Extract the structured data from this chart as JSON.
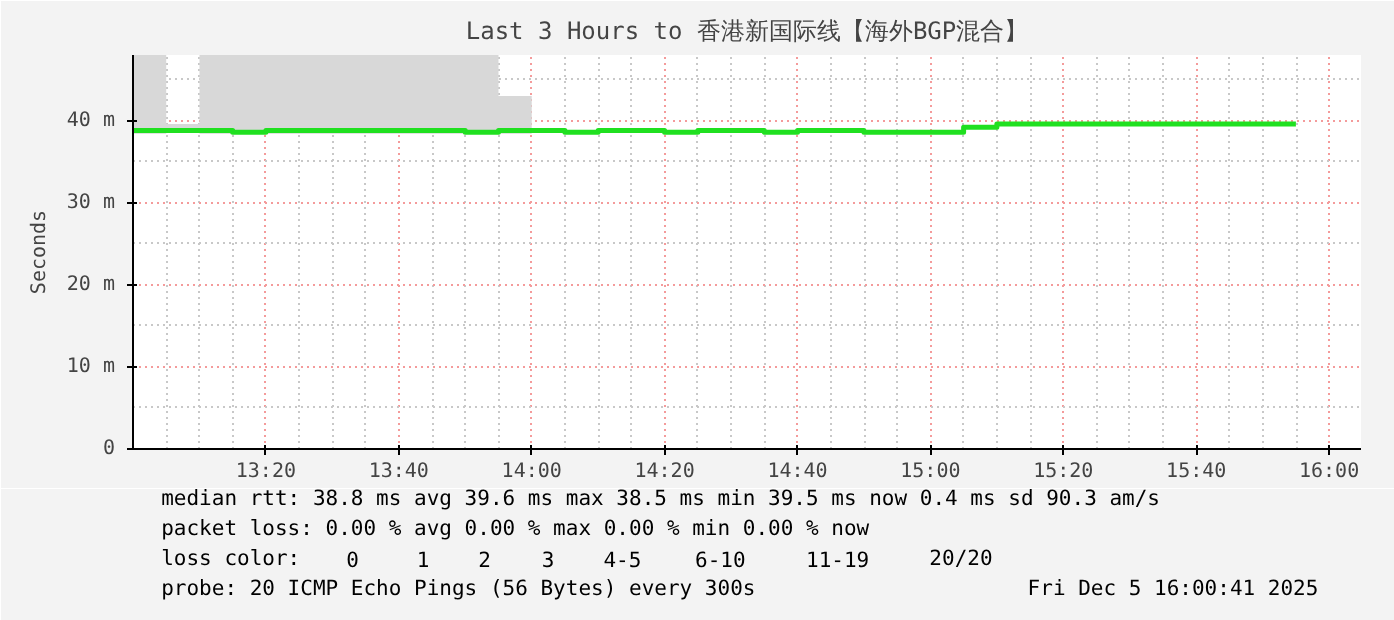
{
  "chart_data": {
    "type": "step",
    "title": "Last 3 Hours to 香港新国际线【海外BGP混合】",
    "ylabel": "Seconds",
    "x": [
      13.0,
      13.0833,
      13.1667,
      13.25,
      13.3333,
      13.4167,
      13.5,
      13.5833,
      13.6667,
      13.75,
      13.8333,
      13.9167,
      14.0,
      14.0833,
      14.1667,
      14.25,
      14.3333,
      14.4167,
      14.5,
      14.5833,
      14.6667,
      14.75,
      14.8333,
      14.9167,
      15.0,
      15.0833,
      15.1667,
      15.25,
      15.3333,
      15.4167,
      15.5,
      15.5833,
      15.6667,
      15.75,
      15.8333,
      15.9167
    ],
    "series": [
      {
        "color": "#20e020",
        "values": [
          38.8,
          38.8,
          38.8,
          38.6,
          38.8,
          38.8,
          38.8,
          38.8,
          38.8,
          38.8,
          38.6,
          38.8,
          38.8,
          38.6,
          38.8,
          38.8,
          38.6,
          38.8,
          38.8,
          38.6,
          38.8,
          38.8,
          38.6,
          38.6,
          38.6,
          39.2,
          39.6,
          39.6,
          39.6,
          39.6,
          39.6,
          39.6,
          39.6,
          39.6,
          39.6,
          39.6
        ],
        "lower": [
          38.4,
          38.9,
          38.4,
          38.4,
          38.4,
          38.4,
          38.4,
          38.4,
          38.4,
          38.4,
          38.4,
          38.4,
          38.4,
          null,
          null,
          null,
          null,
          null,
          null,
          null,
          null,
          null,
          null,
          null,
          null,
          null,
          null,
          null,
          null,
          null,
          null,
          null,
          null,
          null,
          null,
          null
        ],
        "upper": [
          48,
          39.6,
          48,
          48,
          48,
          48,
          48,
          48,
          48,
          48,
          48,
          43,
          43,
          null,
          null,
          null,
          null,
          null,
          null,
          null,
          null,
          null,
          null,
          null,
          null,
          null,
          null,
          null,
          null,
          null,
          null,
          null,
          null,
          null,
          null,
          null
        ]
      }
    ],
    "xlim": [
      13.0,
      16.08
    ],
    "ylim": [
      0,
      48
    ],
    "xticks": [
      {
        "value": 13.3333,
        "label": "13:20"
      },
      {
        "value": 13.6667,
        "label": "13:40"
      },
      {
        "value": 14.0,
        "label": "14:00"
      },
      {
        "value": 14.3333,
        "label": "14:20"
      },
      {
        "value": 14.6667,
        "label": "14:40"
      },
      {
        "value": 15.0,
        "label": "15:00"
      },
      {
        "value": 15.3333,
        "label": "15:20"
      },
      {
        "value": 15.6667,
        "label": "15:40"
      },
      {
        "value": 16.0,
        "label": "16:00"
      }
    ],
    "yticks": [
      0,
      {
        "value": 10,
        "label": "10 m"
      },
      {
        "value": 20,
        "label": "20 m"
      },
      {
        "value": 30,
        "label": "30 m"
      },
      {
        "value": 40,
        "label": "40 m"
      }
    ],
    "grid": true,
    "line_style": "solid",
    "marker": "none",
    "annotations": [
      "median rtt:  38.8 ms avg  39.6 ms max  38.5 ms min  39.5 ms now  0.4 ms sd  90.3   am/s",
      "packet loss: 0.00 % avg  0.00 % max  0.00 % min  0.00 % now",
      "loss color:",
      "0",
      "1",
      "2",
      "3",
      "4-5",
      "6-10",
      "11-19",
      "20/20",
      "probe:       20 ICMP Echo Pings (56 Bytes) every 300s",
      "Fri Dec  5 16:00:41 2025"
    ]
  }
}
